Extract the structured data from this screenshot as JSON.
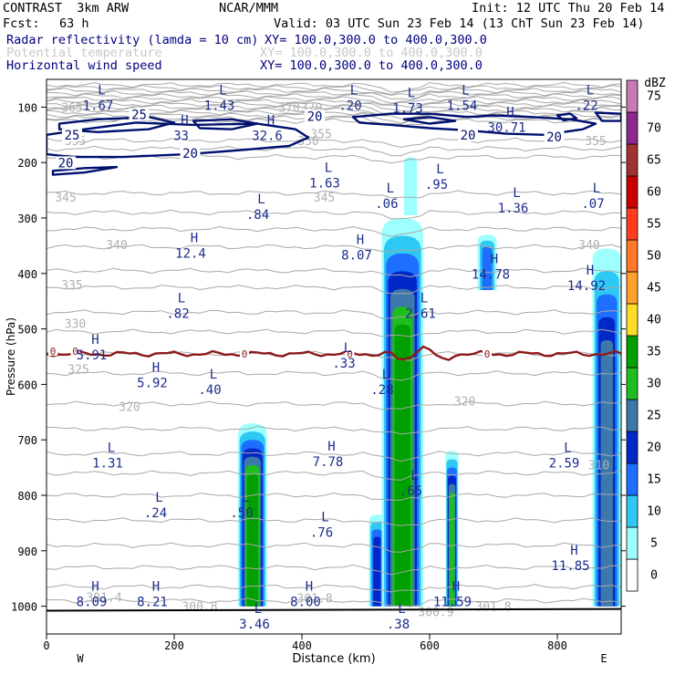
{
  "header": {
    "model": "CONTRAST  3km ARW",
    "org": "NCAR/MMM",
    "init": "Init: 12 UTC Thu 20 Feb 14",
    "fcst_label": "Fcst:",
    "fcst_value": "63 h",
    "valid": "Valid: 03 UTC Sun 23 Feb 14 (13 ChT Sun 23 Feb 14)",
    "fields": [
      {
        "name": "Radar reflectivity (lamda = 10 cm)",
        "xy": "XY= 100.0,300.0 to 400.0,300.0",
        "color": "#000080"
      },
      {
        "name": "Potential temperature",
        "xy": "XY= 100.0,300.0 to 400.0,300.0",
        "color": "#c8c8c8"
      },
      {
        "name": "Horizontal wind speed",
        "xy": "XY= 100.0,300.0 to 400.0,300.0",
        "color": "#000080"
      }
    ]
  },
  "chart_data": {
    "type": "heatmap",
    "xlabel": "Distance (km)",
    "ylabel": "Pressure (hPa)",
    "xlim": [
      0,
      900
    ],
    "ylim": [
      1050,
      50
    ],
    "x_ticks": [
      0,
      200,
      400,
      600,
      800
    ],
    "y_ticks": [
      100,
      200,
      300,
      400,
      500,
      600,
      700,
      800,
      900,
      1000
    ],
    "x_ends": {
      "left": "W",
      "right": "E"
    },
    "colorbar": {
      "unit": "dBZ",
      "levels": [
        0,
        5,
        10,
        15,
        20,
        25,
        30,
        35,
        40,
        45,
        50,
        55,
        60,
        65,
        70,
        75
      ],
      "colors": [
        "#ffffff",
        "#9effff",
        "#2ec8f5",
        "#1e6eff",
        "#0028c8",
        "#3c78aa",
        "#1ebe1e",
        "#00a000",
        "#ffdc28",
        "#ffa028",
        "#ff7828",
        "#ff3c1e",
        "#c80000",
        "#a03232",
        "#8c288c",
        "#c87ab4"
      ]
    },
    "reflectivity_cells": [
      {
        "x": [
          300,
          345
        ],
        "top": 670,
        "bottom": 1000,
        "max_dbz": 35
      },
      {
        "x": [
          505,
          530
        ],
        "top": 835,
        "bottom": 1000,
        "max_dbz": 20
      },
      {
        "x": [
          525,
          590
        ],
        "top": 300,
        "bottom": 1000,
        "max_dbz": 35
      },
      {
        "x": [
          560,
          580
        ],
        "top": 190,
        "bottom": 295,
        "max_dbz": 5
      },
      {
        "x": [
          625,
          645
        ],
        "top": 720,
        "bottom": 1000,
        "max_dbz": 30
      },
      {
        "x": [
          675,
          705
        ],
        "top": 330,
        "bottom": 430,
        "max_dbz": 15
      },
      {
        "x": [
          855,
          900
        ],
        "top": 355,
        "bottom": 1000,
        "max_dbz": 25
      }
    ],
    "wind_speed_contours": [
      {
        "value": 25,
        "label_pos": [
          145,
          115
        ]
      },
      {
        "value": 25,
        "label_pos": [
          40,
          152
        ]
      },
      {
        "value": 20,
        "label_pos": [
          225,
          185
        ]
      },
      {
        "value": 20,
        "label_pos": [
          420,
          118
        ]
      },
      {
        "value": 20,
        "label_pos": [
          660,
          152
        ]
      },
      {
        "value": 20,
        "label_pos": [
          795,
          155
        ]
      },
      {
        "value": 20,
        "label_pos": [
          30,
          202
        ]
      }
    ],
    "theta_labels": [
      {
        "value": 365,
        "x": 40,
        "y": 100
      },
      {
        "value": 370,
        "x": 380,
        "y": 100
      },
      {
        "value": 370,
        "x": 415,
        "y": 100
      },
      {
        "value": 355,
        "x": 45,
        "y": 160
      },
      {
        "value": 355,
        "x": 430,
        "y": 148
      },
      {
        "value": 355,
        "x": 860,
        "y": 160
      },
      {
        "value": 350,
        "x": 410,
        "y": 160
      },
      {
        "value": 345,
        "x": 30,
        "y": 262
      },
      {
        "value": 345,
        "x": 435,
        "y": 262
      },
      {
        "value": 340,
        "x": 110,
        "y": 348
      },
      {
        "value": 340,
        "x": 850,
        "y": 348
      },
      {
        "value": 335,
        "x": 40,
        "y": 420
      },
      {
        "value": 330,
        "x": 45,
        "y": 490
      },
      {
        "value": 325,
        "x": 50,
        "y": 572
      },
      {
        "value": 320,
        "x": 130,
        "y": 640
      },
      {
        "value": 320,
        "x": 655,
        "y": 630
      },
      {
        "value": 310,
        "x": 865,
        "y": 745
      },
      {
        "value": 301.4,
        "x": 90,
        "y": 983
      },
      {
        "value": 300.8,
        "x": 240,
        "y": 1000
      },
      {
        "value": 301.8,
        "x": 420,
        "y": 985
      },
      {
        "value": 300.9,
        "x": 610,
        "y": 1010
      },
      {
        "value": 301.8,
        "x": 700,
        "y": 1000
      }
    ],
    "freezing_level_label": "0",
    "extrema": [
      {
        "type": "L",
        "value": "1.67",
        "x": 75,
        "y": 85
      },
      {
        "type": "L",
        "value": "1.43",
        "x": 265,
        "y": 85
      },
      {
        "type": "L",
        "value": ".20",
        "x": 470,
        "y": 85
      },
      {
        "type": "L",
        "value": "1.73",
        "x": 560,
        "y": 90
      },
      {
        "type": "L",
        "value": "1.54",
        "x": 645,
        "y": 85
      },
      {
        "type": "L",
        "value": ".22",
        "x": 840,
        "y": 85
      },
      {
        "type": "H",
        "value": "33",
        "x": 205,
        "y": 140
      },
      {
        "type": "H",
        "value": "32.6",
        "x": 340,
        "y": 140
      },
      {
        "type": "H",
        "value": "30.71",
        "x": 715,
        "y": 125
      },
      {
        "type": "L",
        "value": "1.63",
        "x": 430,
        "y": 225
      },
      {
        "type": "L",
        "value": ".06",
        "x": 527,
        "y": 262
      },
      {
        "type": "L",
        "value": ".95",
        "x": 605,
        "y": 228
      },
      {
        "type": "L",
        "value": "1.36",
        "x": 725,
        "y": 270
      },
      {
        "type": "L",
        "value": ".07",
        "x": 850,
        "y": 262
      },
      {
        "type": "L",
        "value": ".84",
        "x": 325,
        "y": 282
      },
      {
        "type": "H",
        "value": "12.4",
        "x": 220,
        "y": 352
      },
      {
        "type": "H",
        "value": "8.07",
        "x": 480,
        "y": 355
      },
      {
        "type": "H",
        "value": "14.78",
        "x": 690,
        "y": 390
      },
      {
        "type": "H",
        "value": "14.92",
        "x": 840,
        "y": 410
      },
      {
        "type": "L",
        "value": ".82",
        "x": 200,
        "y": 460
      },
      {
        "type": "L",
        "value": "2.61",
        "x": 580,
        "y": 460
      },
      {
        "type": "H",
        "value": "5.91",
        "x": 65,
        "y": 535
      },
      {
        "type": "L",
        "value": ".33",
        "x": 460,
        "y": 550
      },
      {
        "type": "H",
        "value": "5.92",
        "x": 160,
        "y": 585
      },
      {
        "type": "L",
        "value": ".40",
        "x": 250,
        "y": 598
      },
      {
        "type": "L",
        "value": ".28",
        "x": 520,
        "y": 598
      },
      {
        "type": "L",
        "value": "1.31",
        "x": 90,
        "y": 730
      },
      {
        "type": "H",
        "value": "7.78",
        "x": 435,
        "y": 728
      },
      {
        "type": "L",
        "value": "2.59",
        "x": 805,
        "y": 730
      },
      {
        "type": "L",
        "value": ".65",
        "x": 565,
        "y": 780
      },
      {
        "type": "L",
        "value": ".24",
        "x": 165,
        "y": 820
      },
      {
        "type": "L",
        "value": ".50",
        "x": 300,
        "y": 820
      },
      {
        "type": "L",
        "value": ".76",
        "x": 425,
        "y": 855
      },
      {
        "type": "H",
        "value": "11.85",
        "x": 815,
        "y": 915
      },
      {
        "type": "H",
        "value": "8.09",
        "x": 65,
        "y": 980
      },
      {
        "type": "H",
        "value": "8.21",
        "x": 160,
        "y": 980
      },
      {
        "type": "H",
        "value": "8.00",
        "x": 400,
        "y": 980
      },
      {
        "type": "H",
        "value": "11.59",
        "x": 630,
        "y": 980
      },
      {
        "type": "L",
        "value": "3.46",
        "x": 320,
        "y": 1020
      },
      {
        "type": "L",
        "value": ".38",
        "x": 545,
        "y": 1020
      }
    ]
  }
}
